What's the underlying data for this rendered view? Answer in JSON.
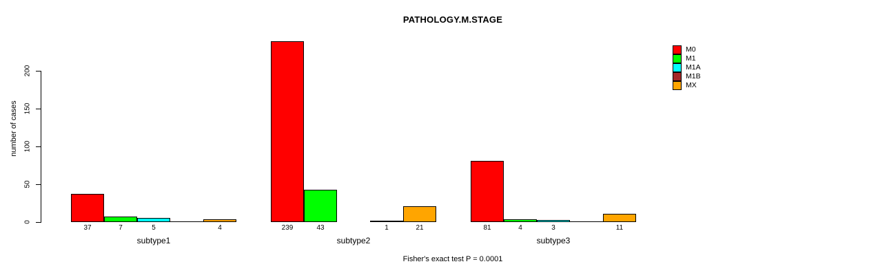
{
  "chart_data": {
    "type": "bar",
    "title": "PATHOLOGY.M.STAGE",
    "ylabel": "number of cases",
    "xlabel": "",
    "footer": "Fisher's exact test P = 0.0001",
    "ylim": [
      0,
      200
    ],
    "yticks": [
      0,
      50,
      100,
      150,
      200
    ],
    "grid": false,
    "legend_position": "top-right",
    "categories": [
      "M0",
      "M1",
      "M1A",
      "M1B",
      "MX"
    ],
    "category_colors": [
      "#ff0000",
      "#00ff00",
      "#00ffff",
      "#a52a2a",
      "#ffa500"
    ],
    "groups": [
      {
        "label": "subtype1",
        "values": [
          37,
          7,
          5,
          0,
          4
        ],
        "count_labels": [
          "37",
          "7",
          "5",
          "",
          "4"
        ],
        "zero_line_slots": [
          3
        ]
      },
      {
        "label": "subtype2",
        "values": [
          239,
          43,
          0,
          1,
          21
        ],
        "count_labels": [
          "239",
          "43",
          "",
          "1",
          "21"
        ],
        "zero_line_slots": []
      },
      {
        "label": "subtype3",
        "values": [
          81,
          4,
          3,
          0,
          11
        ],
        "count_labels": [
          "81",
          "4",
          "3",
          "",
          "11"
        ],
        "zero_line_slots": [
          3
        ]
      }
    ],
    "annotation": "Fisher's exact test P = 0.0001"
  },
  "legend": {
    "items": [
      {
        "label": "M0",
        "color": "#ff0000"
      },
      {
        "label": "M1",
        "color": "#00ff00"
      },
      {
        "label": "M1A",
        "color": "#00ffff"
      },
      {
        "label": "M1B",
        "color": "#a52a2a"
      },
      {
        "label": "MX",
        "color": "#ffa500"
      }
    ]
  },
  "colors": {
    "background": "#ffffff",
    "axis": "#000000",
    "text": "#000000"
  }
}
